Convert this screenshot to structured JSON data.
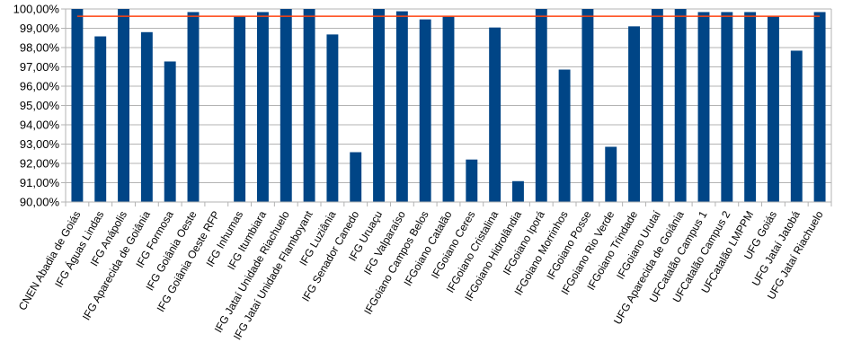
{
  "chart_data": {
    "type": "bar",
    "title": "",
    "xlabel": "",
    "ylabel": "",
    "ylim": [
      90,
      100
    ],
    "y_ticks": [
      "90,00%",
      "91,00%",
      "92,00%",
      "93,00%",
      "94,00%",
      "95,00%",
      "96,00%",
      "97,00%",
      "98,00%",
      "99,00%",
      "100,00%"
    ],
    "grid": true,
    "legend": "none",
    "categories": [
      "CNEN Abadia de Goiás",
      "IFG Águas Lindas",
      "IFG Anápolis",
      "IFG Aparecida de Goiânia",
      "IFG Formosa",
      "IFG Goiânia Oeste",
      "IFG Goiânia Oeste RFP",
      "IFG Inhumas",
      "IFG Itumbiara",
      "IFG Jataí Unidade Riachuelo",
      "IFG Jataí Unidade Flamboyant",
      "IFG Luziânia",
      "IFG Senador Canedo",
      "IFG Uruaçu",
      "IFG Valparaíso",
      "IFGoiano Campos Belos",
      "IFGoiano Catalão",
      "IFGoiano Ceres",
      "IFGoiano Cristalina",
      "IFGoiano Hidrolândia",
      "IFGoiano Iporá",
      "IFGoiano Morrinhos",
      "IFGoiano Posse",
      "IFGoiano Rio Verde",
      "IFGoiano Trindade",
      "IFGoiano Urutaí",
      "UFG Aparecida de Goiânia",
      "UFCatalão Campus 1",
      "UFCatalão Campus 2",
      "UFCatalão LMPPM",
      "UFG Goiás",
      "UFG Jataí Jatobá",
      "UFG Jataí Riachuelo"
    ],
    "series": [
      {
        "values": [
          100,
          98.58,
          100,
          98.8,
          97.28,
          99.84,
          null,
          99.62,
          99.84,
          100,
          100,
          98.68,
          92.58,
          100,
          99.88,
          99.46,
          99.6,
          92.2,
          99.04,
          91.08,
          100,
          96.86,
          100,
          92.86,
          99.1,
          100,
          100,
          99.84,
          99.84,
          99.84,
          99.62,
          97.84,
          99.84
        ],
        "color": "#004586"
      }
    ],
    "reference_line": {
      "value": 99.62,
      "color": "#ff420e"
    }
  }
}
